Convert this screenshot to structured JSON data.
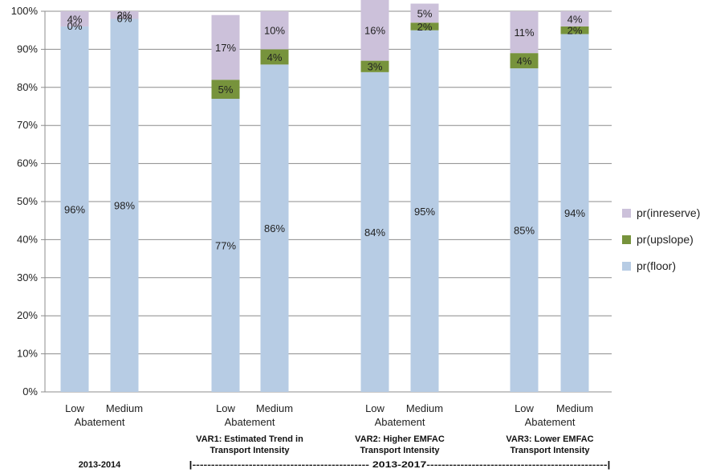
{
  "chart_data": {
    "type": "bar",
    "stacked": true,
    "percent": true,
    "title": "",
    "xlabel": "",
    "ylabel": "",
    "ylim": [
      0,
      100
    ],
    "yticks": [
      "0%",
      "10%",
      "20%",
      "30%",
      "40%",
      "50%",
      "60%",
      "70%",
      "80%",
      "90%",
      "100%"
    ],
    "grid": true,
    "legend_position": "right",
    "categories": [
      {
        "top": "Low",
        "bottom": "",
        "group": 0
      },
      {
        "top": "Medium",
        "bottom": "",
        "group": 0
      },
      {
        "top": "Low",
        "bottom": "",
        "group": 1
      },
      {
        "top": "Medium",
        "bottom": "",
        "group": 1
      },
      {
        "top": "Low",
        "bottom": "",
        "group": 2
      },
      {
        "top": "Medium",
        "bottom": "",
        "group": 2
      },
      {
        "top": "Low",
        "bottom": "",
        "group": 3
      },
      {
        "top": "Medium",
        "bottom": "",
        "group": 3
      }
    ],
    "abatement_label": "Abatement",
    "groups": [
      {
        "lines": []
      },
      {
        "lines": [
          "VAR1: Estimated Trend in",
          "Transport Intensity"
        ]
      },
      {
        "lines": [
          "VAR2: Higher EMFAC",
          "Transport Intensity"
        ]
      },
      {
        "lines": [
          "VAR3: Lower EMFAC",
          "Transport Intensity"
        ]
      }
    ],
    "period_labels": {
      "first": "2013-2014",
      "second": "|-----------------------------------------------  2013-2017------------------------------------------------|"
    },
    "series": [
      {
        "name": "pr(floor)",
        "color": "#b7cce4",
        "values": [
          96,
          98,
          77,
          86,
          84,
          95,
          85,
          94
        ],
        "labels": [
          "96%",
          "98%",
          "77%",
          "86%",
          "84%",
          "95%",
          "85%",
          "94%"
        ]
      },
      {
        "name": "pr(upslope)",
        "color": "#77933c",
        "values": [
          0,
          0,
          5,
          4,
          3,
          2,
          4,
          2
        ],
        "labels": [
          "0%",
          "0%",
          "5%",
          "4%",
          "3%",
          "2%",
          "4%",
          "2%"
        ]
      },
      {
        "name": "pr(inreserve)",
        "color": "#ccc1da",
        "values": [
          4,
          2,
          17,
          10,
          16,
          5,
          11,
          4
        ],
        "labels": [
          "4%",
          "2%",
          "17%",
          "10%",
          "16%",
          "5%",
          "11%",
          "4%"
        ]
      }
    ],
    "legend_order": [
      2,
      1,
      0
    ]
  }
}
